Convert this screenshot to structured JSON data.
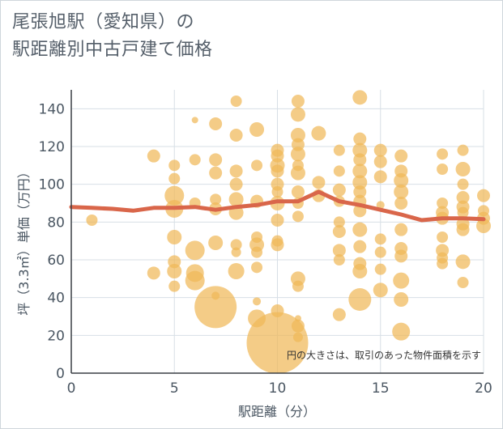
{
  "title_line1": "尾張旭駅（愛知県）の",
  "title_line2": "駅距離別中古戸建て価格",
  "chart_data": {
    "type": "scatter",
    "xlabel": "駅距離（分）",
    "ylabel": "坪（3.3㎡）単価（万円）",
    "note": "円の大きさは、取引のあった物件面積を示す",
    "xlim": [
      0,
      20
    ],
    "ylim": [
      0,
      150
    ],
    "x_ticks": [
      "0",
      "5",
      "10",
      "15",
      "20"
    ],
    "y_ticks": [
      "0",
      "20",
      "40",
      "60",
      "80",
      "100",
      "120",
      "140"
    ],
    "colors": {
      "bubble": "#f0b859",
      "line": "#d9664a",
      "grid": "#d7dfe6"
    },
    "bubbles": [
      {
        "x": 1,
        "y": 81,
        "r": 7
      },
      {
        "x": 4,
        "y": 115,
        "r": 8
      },
      {
        "x": 4,
        "y": 53,
        "r": 8
      },
      {
        "x": 5,
        "y": 110,
        "r": 7
      },
      {
        "x": 5,
        "y": 103,
        "r": 7
      },
      {
        "x": 5,
        "y": 94,
        "r": 12
      },
      {
        "x": 5,
        "y": 87,
        "r": 11
      },
      {
        "x": 5,
        "y": 72,
        "r": 9
      },
      {
        "x": 5,
        "y": 59,
        "r": 8
      },
      {
        "x": 5,
        "y": 54,
        "r": 9
      },
      {
        "x": 5,
        "y": 46,
        "r": 7
      },
      {
        "x": 6,
        "y": 134,
        "r": 4
      },
      {
        "x": 6,
        "y": 113,
        "r": 7
      },
      {
        "x": 6,
        "y": 90,
        "r": 7
      },
      {
        "x": 6,
        "y": 65,
        "r": 12
      },
      {
        "x": 6,
        "y": 53,
        "r": 11
      },
      {
        "x": 6,
        "y": 49,
        "r": 12
      },
      {
        "x": 7,
        "y": 132,
        "r": 8
      },
      {
        "x": 7,
        "y": 113,
        "r": 8
      },
      {
        "x": 7,
        "y": 106,
        "r": 8
      },
      {
        "x": 7,
        "y": 92,
        "r": 7
      },
      {
        "x": 7,
        "y": 87,
        "r": 8
      },
      {
        "x": 7,
        "y": 69,
        "r": 9
      },
      {
        "x": 7,
        "y": 41,
        "r": 5
      },
      {
        "x": 7,
        "y": 35,
        "r": 26
      },
      {
        "x": 8,
        "y": 144,
        "r": 7
      },
      {
        "x": 8,
        "y": 126,
        "r": 8
      },
      {
        "x": 8,
        "y": 107,
        "r": 8
      },
      {
        "x": 8,
        "y": 100,
        "r": 8
      },
      {
        "x": 8,
        "y": 92,
        "r": 9
      },
      {
        "x": 8,
        "y": 85,
        "r": 9
      },
      {
        "x": 8,
        "y": 68,
        "r": 7
      },
      {
        "x": 8,
        "y": 64,
        "r": 6
      },
      {
        "x": 8,
        "y": 54,
        "r": 10
      },
      {
        "x": 9,
        "y": 129,
        "r": 9
      },
      {
        "x": 9,
        "y": 110,
        "r": 7
      },
      {
        "x": 9,
        "y": 91,
        "r": 8
      },
      {
        "x": 9,
        "y": 72,
        "r": 7
      },
      {
        "x": 9,
        "y": 68,
        "r": 9
      },
      {
        "x": 9,
        "y": 64,
        "r": 7
      },
      {
        "x": 9,
        "y": 56,
        "r": 7
      },
      {
        "x": 9,
        "y": 38,
        "r": 5
      },
      {
        "x": 9,
        "y": 29,
        "r": 11
      },
      {
        "x": 10,
        "y": 118,
        "r": 8
      },
      {
        "x": 10,
        "y": 115,
        "r": 8
      },
      {
        "x": 10,
        "y": 110,
        "r": 9
      },
      {
        "x": 10,
        "y": 107,
        "r": 8
      },
      {
        "x": 10,
        "y": 100,
        "r": 8
      },
      {
        "x": 10,
        "y": 96,
        "r": 7
      },
      {
        "x": 10,
        "y": 90,
        "r": 9
      },
      {
        "x": 10,
        "y": 81,
        "r": 8
      },
      {
        "x": 10,
        "y": 70,
        "r": 7
      },
      {
        "x": 10,
        "y": 68,
        "r": 8
      },
      {
        "x": 10,
        "y": 33,
        "r": 8
      },
      {
        "x": 10,
        "y": 16,
        "r": 38
      },
      {
        "x": 11,
        "y": 144,
        "r": 8
      },
      {
        "x": 11,
        "y": 137,
        "r": 9
      },
      {
        "x": 11,
        "y": 126,
        "r": 9
      },
      {
        "x": 11,
        "y": 121,
        "r": 8
      },
      {
        "x": 11,
        "y": 116,
        "r": 9
      },
      {
        "x": 11,
        "y": 110,
        "r": 7
      },
      {
        "x": 11,
        "y": 106,
        "r": 9
      },
      {
        "x": 11,
        "y": 96,
        "r": 8
      },
      {
        "x": 11,
        "y": 90,
        "r": 7
      },
      {
        "x": 11,
        "y": 83,
        "r": 7
      },
      {
        "x": 11,
        "y": 50,
        "r": 9
      },
      {
        "x": 11,
        "y": 46,
        "r": 7
      },
      {
        "x": 11,
        "y": 29,
        "r": 4
      },
      {
        "x": 11,
        "y": 25,
        "r": 8
      },
      {
        "x": 11,
        "y": 19,
        "r": 6
      },
      {
        "x": 12,
        "y": 127,
        "r": 9
      },
      {
        "x": 12,
        "y": 101,
        "r": 8
      },
      {
        "x": 12,
        "y": 94,
        "r": 8
      },
      {
        "x": 13,
        "y": 118,
        "r": 7
      },
      {
        "x": 13,
        "y": 107,
        "r": 7
      },
      {
        "x": 13,
        "y": 97,
        "r": 8
      },
      {
        "x": 13,
        "y": 91,
        "r": 7
      },
      {
        "x": 13,
        "y": 80,
        "r": 7
      },
      {
        "x": 13,
        "y": 75,
        "r": 8
      },
      {
        "x": 13,
        "y": 65,
        "r": 8
      },
      {
        "x": 13,
        "y": 60,
        "r": 7
      },
      {
        "x": 13,
        "y": 31,
        "r": 8
      },
      {
        "x": 14,
        "y": 146,
        "r": 9
      },
      {
        "x": 14,
        "y": 124,
        "r": 8
      },
      {
        "x": 14,
        "y": 118,
        "r": 9
      },
      {
        "x": 14,
        "y": 113,
        "r": 8
      },
      {
        "x": 14,
        "y": 107,
        "r": 9
      },
      {
        "x": 14,
        "y": 101,
        "r": 9
      },
      {
        "x": 14,
        "y": 96,
        "r": 8
      },
      {
        "x": 14,
        "y": 91,
        "r": 8
      },
      {
        "x": 14,
        "y": 86,
        "r": 8
      },
      {
        "x": 14,
        "y": 76,
        "r": 9
      },
      {
        "x": 14,
        "y": 67,
        "r": 8
      },
      {
        "x": 14,
        "y": 58,
        "r": 8
      },
      {
        "x": 14,
        "y": 54,
        "r": 9
      },
      {
        "x": 14,
        "y": 39,
        "r": 14
      },
      {
        "x": 15,
        "y": 118,
        "r": 8
      },
      {
        "x": 15,
        "y": 112,
        "r": 8
      },
      {
        "x": 15,
        "y": 104,
        "r": 8
      },
      {
        "x": 15,
        "y": 89,
        "r": 5
      },
      {
        "x": 15,
        "y": 71,
        "r": 7
      },
      {
        "x": 15,
        "y": 64,
        "r": 7
      },
      {
        "x": 15,
        "y": 55,
        "r": 7
      },
      {
        "x": 15,
        "y": 44,
        "r": 9
      },
      {
        "x": 16,
        "y": 115,
        "r": 8
      },
      {
        "x": 16,
        "y": 107,
        "r": 8
      },
      {
        "x": 16,
        "y": 102,
        "r": 9
      },
      {
        "x": 16,
        "y": 96,
        "r": 9
      },
      {
        "x": 16,
        "y": 90,
        "r": 8
      },
      {
        "x": 16,
        "y": 76,
        "r": 8
      },
      {
        "x": 16,
        "y": 66,
        "r": 8
      },
      {
        "x": 16,
        "y": 62,
        "r": 8
      },
      {
        "x": 16,
        "y": 49,
        "r": 10
      },
      {
        "x": 16,
        "y": 39,
        "r": 9
      },
      {
        "x": 16,
        "y": 22,
        "r": 11
      },
      {
        "x": 18,
        "y": 116,
        "r": 7
      },
      {
        "x": 18,
        "y": 108,
        "r": 7
      },
      {
        "x": 18,
        "y": 90,
        "r": 7
      },
      {
        "x": 18,
        "y": 85,
        "r": 8
      },
      {
        "x": 18,
        "y": 82,
        "r": 8
      },
      {
        "x": 18,
        "y": 72,
        "r": 7
      },
      {
        "x": 18,
        "y": 65,
        "r": 8
      },
      {
        "x": 18,
        "y": 61,
        "r": 7
      },
      {
        "x": 18,
        "y": 58,
        "r": 7
      },
      {
        "x": 19,
        "y": 118,
        "r": 7
      },
      {
        "x": 19,
        "y": 108,
        "r": 9
      },
      {
        "x": 19,
        "y": 100,
        "r": 7
      },
      {
        "x": 19,
        "y": 93,
        "r": 8
      },
      {
        "x": 19,
        "y": 88,
        "r": 8
      },
      {
        "x": 19,
        "y": 85,
        "r": 7
      },
      {
        "x": 19,
        "y": 79,
        "r": 8
      },
      {
        "x": 19,
        "y": 76,
        "r": 8
      },
      {
        "x": 19,
        "y": 59,
        "r": 9
      },
      {
        "x": 19,
        "y": 48,
        "r": 7
      },
      {
        "x": 20,
        "y": 94,
        "r": 8
      },
      {
        "x": 20,
        "y": 86,
        "r": 7
      },
      {
        "x": 20,
        "y": 82,
        "r": 8
      },
      {
        "x": 20,
        "y": 78,
        "r": 9
      }
    ],
    "line": [
      {
        "x": 0,
        "y": 88
      },
      {
        "x": 1,
        "y": 87.5
      },
      {
        "x": 2,
        "y": 87
      },
      {
        "x": 3,
        "y": 86
      },
      {
        "x": 4,
        "y": 87.5
      },
      {
        "x": 5,
        "y": 87.5
      },
      {
        "x": 6,
        "y": 88
      },
      {
        "x": 7,
        "y": 86.5
      },
      {
        "x": 8,
        "y": 88
      },
      {
        "x": 9,
        "y": 89
      },
      {
        "x": 10,
        "y": 91
      },
      {
        "x": 11,
        "y": 91
      },
      {
        "x": 12,
        "y": 96
      },
      {
        "x": 13,
        "y": 91
      },
      {
        "x": 14,
        "y": 89
      },
      {
        "x": 15,
        "y": 86.5
      },
      {
        "x": 16,
        "y": 84
      },
      {
        "x": 17,
        "y": 81
      },
      {
        "x": 18,
        "y": 82
      },
      {
        "x": 19,
        "y": 82
      },
      {
        "x": 20,
        "y": 81.5
      }
    ]
  }
}
